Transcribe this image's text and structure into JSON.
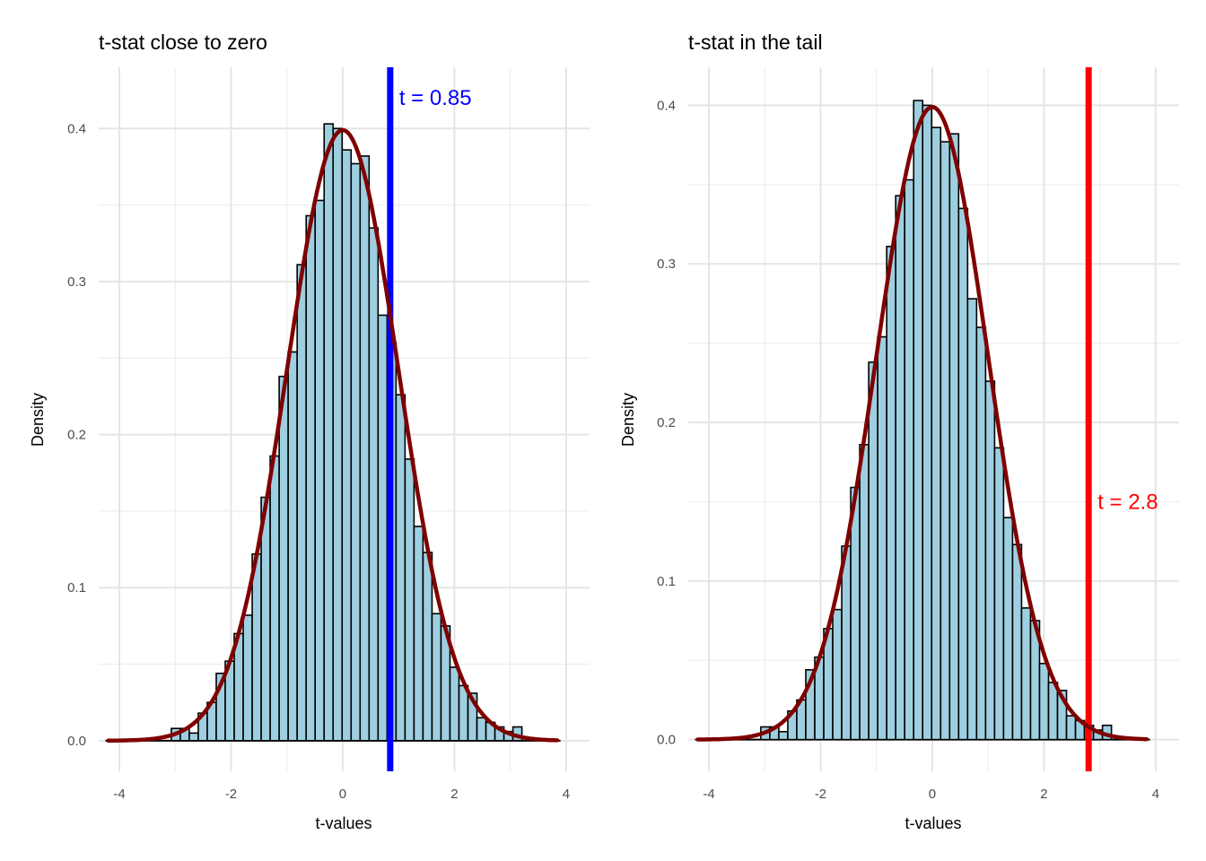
{
  "chart_data": [
    {
      "type": "bar",
      "title": "t-stat close to zero",
      "xlabel": "t-values",
      "ylabel": "Density",
      "xlim": [
        -4.37,
        4.42
      ],
      "ylim": [
        -0.02,
        0.44
      ],
      "xticks": [
        -4,
        -2,
        0,
        2,
        4
      ],
      "xtick_labels": [
        "-4",
        "-2",
        "0",
        "2",
        "4"
      ],
      "yticks": [
        0.0,
        0.1,
        0.2,
        0.3,
        0.4
      ],
      "ytick_labels": [
        "0.0",
        "0.1",
        "0.2",
        "0.3",
        "0.4"
      ],
      "grid": true,
      "histogram": {
        "bin_start": -3.07,
        "bin_width": 0.161,
        "density": [
          0.008,
          0.008,
          0.005,
          0.018,
          0.025,
          0.044,
          0.052,
          0.07,
          0.082,
          0.122,
          0.159,
          0.186,
          0.238,
          0.254,
          0.311,
          0.343,
          0.353,
          0.403,
          0.4,
          0.386,
          0.377,
          0.382,
          0.335,
          0.278,
          0.26,
          0.226,
          0.184,
          0.14,
          0.123,
          0.083,
          0.075,
          0.048,
          0.036,
          0.031,
          0.015,
          0.012,
          0.009,
          0.006,
          0.009
        ],
        "range": [
          -4.25,
          3.9
        ],
        "fill": "#9ecfe0",
        "stroke": "#000000"
      },
      "curve": {
        "type": "normal-density",
        "mean": 0,
        "sd": 1,
        "range": [
          -4.2,
          3.85
        ],
        "color": "#800000"
      },
      "vline": {
        "x": 0.85,
        "color": "#0000ff",
        "label": "t = 0.85",
        "label_y": 0.42
      }
    },
    {
      "type": "bar",
      "title": "t-stat in the tail",
      "xlabel": "t-values",
      "ylabel": "Density",
      "xlim": [
        -4.37,
        4.42
      ],
      "ylim": [
        -0.02,
        0.424
      ],
      "xticks": [
        -4,
        -2,
        0,
        2,
        4
      ],
      "xtick_labels": [
        "-4",
        "-2",
        "0",
        "2",
        "4"
      ],
      "yticks": [
        0.0,
        0.1,
        0.2,
        0.3,
        0.4
      ],
      "ytick_labels": [
        "0.0",
        "0.1",
        "0.2",
        "0.3",
        "0.4"
      ],
      "grid": true,
      "histogram": {
        "bin_start": -3.07,
        "bin_width": 0.161,
        "density": [
          0.008,
          0.008,
          0.005,
          0.018,
          0.025,
          0.044,
          0.052,
          0.07,
          0.082,
          0.122,
          0.159,
          0.186,
          0.238,
          0.254,
          0.311,
          0.343,
          0.353,
          0.403,
          0.4,
          0.386,
          0.377,
          0.382,
          0.335,
          0.278,
          0.26,
          0.226,
          0.184,
          0.14,
          0.123,
          0.083,
          0.075,
          0.048,
          0.036,
          0.031,
          0.015,
          0.012,
          0.009,
          0.006,
          0.009
        ],
        "range": [
          -4.25,
          3.9
        ],
        "fill": "#9ecfe0",
        "stroke": "#000000"
      },
      "curve": {
        "type": "normal-density",
        "mean": 0,
        "sd": 1,
        "range": [
          -4.2,
          3.85
        ],
        "color": "#800000"
      },
      "vline": {
        "x": 2.8,
        "color": "#ff0000",
        "label": "t = 2.8",
        "label_y": 0.15
      }
    }
  ]
}
